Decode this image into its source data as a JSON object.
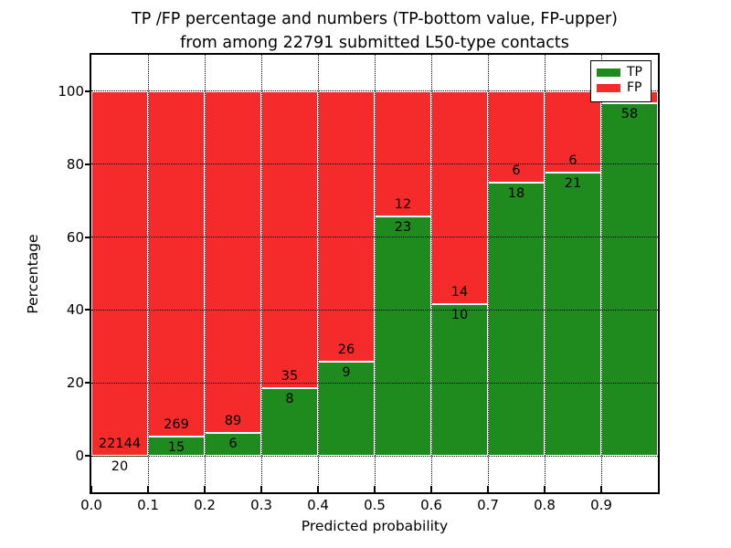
{
  "figure": {
    "title_line1": "TP /FP percentage and numbers (TP-bottom value, FP-upper)",
    "title_line2": "from among 22791 submitted L50-type contacts",
    "total_contacts": "22791"
  },
  "axes": {
    "xlabel": "Predicted probability",
    "ylabel": "Percentage",
    "xtick_labels": [
      "0.0",
      "0.1",
      "0.2",
      "0.3",
      "0.4",
      "0.5",
      "0.6",
      "0.7",
      "0.8",
      "0.9"
    ],
    "ytick_values": [
      0,
      20,
      40,
      60,
      80,
      100
    ],
    "ytick_labels": [
      "0",
      "20",
      "40",
      "60",
      "80",
      "100"
    ],
    "xlim": [
      0.0,
      1.0
    ],
    "ylim": [
      -10,
      110
    ],
    "grid": "dotted"
  },
  "legend": {
    "position": "upper-right",
    "items": [
      {
        "label": "TP",
        "color": "#1f8b1f"
      },
      {
        "label": "FP",
        "color": "#f52a2a"
      }
    ]
  },
  "colors": {
    "tp": "#1f8b1f",
    "fp": "#f52a2a",
    "bar_edge": "#ffffff",
    "grid": "#000000",
    "text": "#000000",
    "background": "#ffffff"
  },
  "chart_data": {
    "type": "bar",
    "stacked": true,
    "unit": "percent",
    "bin_width": 0.1,
    "title": "TP /FP percentage and numbers (TP-bottom value, FP-upper) from among 22791 submitted L50-type contacts",
    "xlabel": "Predicted probability",
    "ylabel": "Percentage",
    "ylim": [
      -10,
      110
    ],
    "series_names": [
      "TP",
      "FP"
    ],
    "bars": [
      {
        "x_start": 0.0,
        "x_end": 0.1,
        "tp_count": 20,
        "fp_count": 22144,
        "tp_pct": 0.09,
        "fp_pct": 99.91,
        "tp_label": "20",
        "fp_label": "22144"
      },
      {
        "x_start": 0.1,
        "x_end": 0.2,
        "tp_count": 15,
        "fp_count": 269,
        "tp_pct": 5.28,
        "fp_pct": 94.72,
        "tp_label": "15",
        "fp_label": "269"
      },
      {
        "x_start": 0.2,
        "x_end": 0.3,
        "tp_count": 6,
        "fp_count": 89,
        "tp_pct": 6.32,
        "fp_pct": 93.68,
        "tp_label": "6",
        "fp_label": "89"
      },
      {
        "x_start": 0.3,
        "x_end": 0.4,
        "tp_count": 8,
        "fp_count": 35,
        "tp_pct": 18.6,
        "fp_pct": 81.4,
        "tp_label": "8",
        "fp_label": "35"
      },
      {
        "x_start": 0.4,
        "x_end": 0.5,
        "tp_count": 9,
        "fp_count": 26,
        "tp_pct": 25.71,
        "fp_pct": 74.29,
        "tp_label": "9",
        "fp_label": "26"
      },
      {
        "x_start": 0.5,
        "x_end": 0.6,
        "tp_count": 23,
        "fp_count": 12,
        "tp_pct": 65.71,
        "fp_pct": 34.29,
        "tp_label": "23",
        "fp_label": "12"
      },
      {
        "x_start": 0.6,
        "x_end": 0.7,
        "tp_count": 10,
        "fp_count": 14,
        "tp_pct": 41.67,
        "fp_pct": 58.33,
        "tp_label": "10",
        "fp_label": "14"
      },
      {
        "x_start": 0.7,
        "x_end": 0.8,
        "tp_count": 18,
        "fp_count": 6,
        "tp_pct": 75.0,
        "fp_pct": 25.0,
        "tp_label": "18",
        "fp_label": "6"
      },
      {
        "x_start": 0.8,
        "x_end": 0.9,
        "tp_count": 21,
        "fp_count": 6,
        "tp_pct": 77.78,
        "fp_pct": 22.22,
        "tp_label": "21",
        "fp_label": "6"
      },
      {
        "x_start": 0.9,
        "x_end": 1.0,
        "tp_count": 58,
        "fp_count": 2,
        "tp_pct": 96.67,
        "fp_pct": 3.33,
        "tp_label": "58",
        "fp_label": ""
      }
    ]
  }
}
